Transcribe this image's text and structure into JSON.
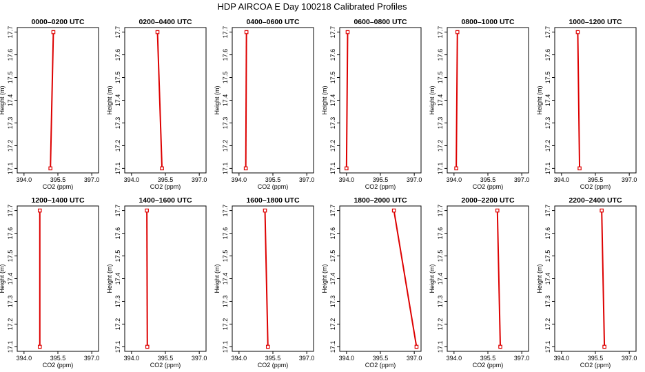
{
  "figure": {
    "title": "HDP AIRCOA E  Day 100218  Calibrated Profiles"
  },
  "colors": {
    "profile_line": "#dd0000",
    "marker": "#dd0000",
    "frame": "#000000"
  },
  "chart_data": [
    {
      "type": "line",
      "title": "0000–0200 UTC",
      "xlabel": "CO2 (ppm)",
      "ylabel": "Height (m)",
      "xlim": [
        393.7,
        397.3
      ],
      "ylim": [
        17.08,
        17.72
      ],
      "xticks": [
        "394.0",
        "395.5",
        "397.0"
      ],
      "yticks": [
        "17.1",
        "17.2",
        "17.3",
        "17.4",
        "17.5",
        "17.6",
        "17.7"
      ],
      "grid": false,
      "series": [
        {
          "x": [
            395.17,
            395.3
          ],
          "y": [
            17.1,
            17.7
          ]
        }
      ]
    },
    {
      "type": "line",
      "title": "0200–0400 UTC",
      "xlabel": "CO2 (ppm)",
      "ylabel": "Height (m)",
      "xlim": [
        393.7,
        397.3
      ],
      "ylim": [
        17.08,
        17.72
      ],
      "xticks": [
        "394.0",
        "395.5",
        "397.0"
      ],
      "yticks": [
        "17.1",
        "17.2",
        "17.3",
        "17.4",
        "17.5",
        "17.6",
        "17.7"
      ],
      "grid": false,
      "series": [
        {
          "x": [
            395.35,
            395.15
          ],
          "y": [
            17.1,
            17.7
          ]
        }
      ]
    },
    {
      "type": "line",
      "title": "0400–0600 UTC",
      "xlabel": "CO2 (ppm)",
      "ylabel": "Height (m)",
      "xlim": [
        393.7,
        397.3
      ],
      "ylim": [
        17.08,
        17.72
      ],
      "xticks": [
        "394.0",
        "395.5",
        "397.0"
      ],
      "yticks": [
        "17.1",
        "17.2",
        "17.3",
        "17.4",
        "17.5",
        "17.6",
        "17.7"
      ],
      "grid": false,
      "series": [
        {
          "x": [
            394.3,
            394.33
          ],
          "y": [
            17.1,
            17.7
          ]
        }
      ]
    },
    {
      "type": "line",
      "title": "0600–0800 UTC",
      "xlabel": "CO2 (ppm)",
      "ylabel": "Height (m)",
      "xlim": [
        393.7,
        397.3
      ],
      "ylim": [
        17.08,
        17.72
      ],
      "xticks": [
        "394.0",
        "395.5",
        "397.0"
      ],
      "yticks": [
        "17.1",
        "17.2",
        "17.3",
        "17.4",
        "17.5",
        "17.6",
        "17.7"
      ],
      "grid": false,
      "series": [
        {
          "x": [
            394.0,
            394.05
          ],
          "y": [
            17.1,
            17.7
          ]
        }
      ]
    },
    {
      "type": "line",
      "title": "0800–1000 UTC",
      "xlabel": "CO2 (ppm)",
      "ylabel": "Height (m)",
      "xlim": [
        393.7,
        397.3
      ],
      "ylim": [
        17.08,
        17.72
      ],
      "xticks": [
        "394.0",
        "395.5",
        "397.0"
      ],
      "yticks": [
        "17.1",
        "17.2",
        "17.3",
        "17.4",
        "17.5",
        "17.6",
        "17.7"
      ],
      "grid": false,
      "series": [
        {
          "x": [
            394.1,
            394.15
          ],
          "y": [
            17.1,
            17.7
          ]
        }
      ]
    },
    {
      "type": "line",
      "title": "1000–1200 UTC",
      "xlabel": "CO2 (ppm)",
      "ylabel": "Height (m)",
      "xlim": [
        393.7,
        397.3
      ],
      "ylim": [
        17.08,
        17.72
      ],
      "xticks": [
        "394.0",
        "395.5",
        "397.0"
      ],
      "yticks": [
        "17.1",
        "17.2",
        "17.3",
        "17.4",
        "17.5",
        "17.6",
        "17.7"
      ],
      "grid": false,
      "series": [
        {
          "x": [
            394.8,
            394.72
          ],
          "y": [
            17.1,
            17.7
          ]
        }
      ]
    },
    {
      "type": "line",
      "title": "1200–1400 UTC",
      "xlabel": "CO2 (ppm)",
      "ylabel": "Height (m)",
      "xlim": [
        393.7,
        397.3
      ],
      "ylim": [
        17.08,
        17.72
      ],
      "xticks": [
        "394.0",
        "395.5",
        "397.0"
      ],
      "yticks": [
        "17.1",
        "17.2",
        "17.3",
        "17.4",
        "17.5",
        "17.6",
        "17.7"
      ],
      "grid": false,
      "series": [
        {
          "x": [
            394.7,
            394.7
          ],
          "y": [
            17.1,
            17.7
          ]
        }
      ]
    },
    {
      "type": "line",
      "title": "1400–1600 UTC",
      "xlabel": "CO2 (ppm)",
      "ylabel": "Height (m)",
      "xlim": [
        393.7,
        397.3
      ],
      "ylim": [
        17.08,
        17.72
      ],
      "xticks": [
        "394.0",
        "395.5",
        "397.0"
      ],
      "yticks": [
        "17.1",
        "17.2",
        "17.3",
        "17.4",
        "17.5",
        "17.6",
        "17.7"
      ],
      "grid": false,
      "series": [
        {
          "x": [
            394.7,
            394.68
          ],
          "y": [
            17.1,
            17.7
          ]
        }
      ]
    },
    {
      "type": "line",
      "title": "1600–1800 UTC",
      "xlabel": "CO2 (ppm)",
      "ylabel": "Height (m)",
      "xlim": [
        393.7,
        397.3
      ],
      "ylim": [
        17.08,
        17.72
      ],
      "xticks": [
        "394.0",
        "395.5",
        "397.0"
      ],
      "yticks": [
        "17.1",
        "17.2",
        "17.3",
        "17.4",
        "17.5",
        "17.6",
        "17.7"
      ],
      "grid": false,
      "series": [
        {
          "x": [
            395.28,
            395.15
          ],
          "y": [
            17.1,
            17.7
          ]
        }
      ]
    },
    {
      "type": "line",
      "title": "1800–2000 UTC",
      "xlabel": "CO2 (ppm)",
      "ylabel": "Height (m)",
      "xlim": [
        393.7,
        397.3
      ],
      "ylim": [
        17.08,
        17.72
      ],
      "xticks": [
        "394.0",
        "395.5",
        "397.0"
      ],
      "yticks": [
        "17.1",
        "17.2",
        "17.3",
        "17.4",
        "17.5",
        "17.6",
        "17.7"
      ],
      "grid": false,
      "series": [
        {
          "x": [
            397.1,
            396.1
          ],
          "y": [
            17.1,
            17.7
          ]
        }
      ]
    },
    {
      "type": "line",
      "title": "2000–2200 UTC",
      "xlabel": "CO2 (ppm)",
      "ylabel": "Height (m)",
      "xlim": [
        393.7,
        397.3
      ],
      "ylim": [
        17.08,
        17.72
      ],
      "xticks": [
        "394.0",
        "395.5",
        "397.0"
      ],
      "yticks": [
        "17.1",
        "17.2",
        "17.3",
        "17.4",
        "17.5",
        "17.6",
        "17.7"
      ],
      "grid": false,
      "series": [
        {
          "x": [
            396.05,
            395.92
          ],
          "y": [
            17.1,
            17.7
          ]
        }
      ]
    },
    {
      "type": "line",
      "title": "2200–2400 UTC",
      "xlabel": "CO2 (ppm)",
      "ylabel": "Height (m)",
      "xlim": [
        393.7,
        397.3
      ],
      "ylim": [
        17.08,
        17.72
      ],
      "xticks": [
        "394.0",
        "395.5",
        "397.0"
      ],
      "yticks": [
        "17.1",
        "17.2",
        "17.3",
        "17.4",
        "17.5",
        "17.6",
        "17.7"
      ],
      "grid": false,
      "series": [
        {
          "x": [
            395.9,
            395.78
          ],
          "y": [
            17.1,
            17.7
          ]
        }
      ]
    }
  ]
}
